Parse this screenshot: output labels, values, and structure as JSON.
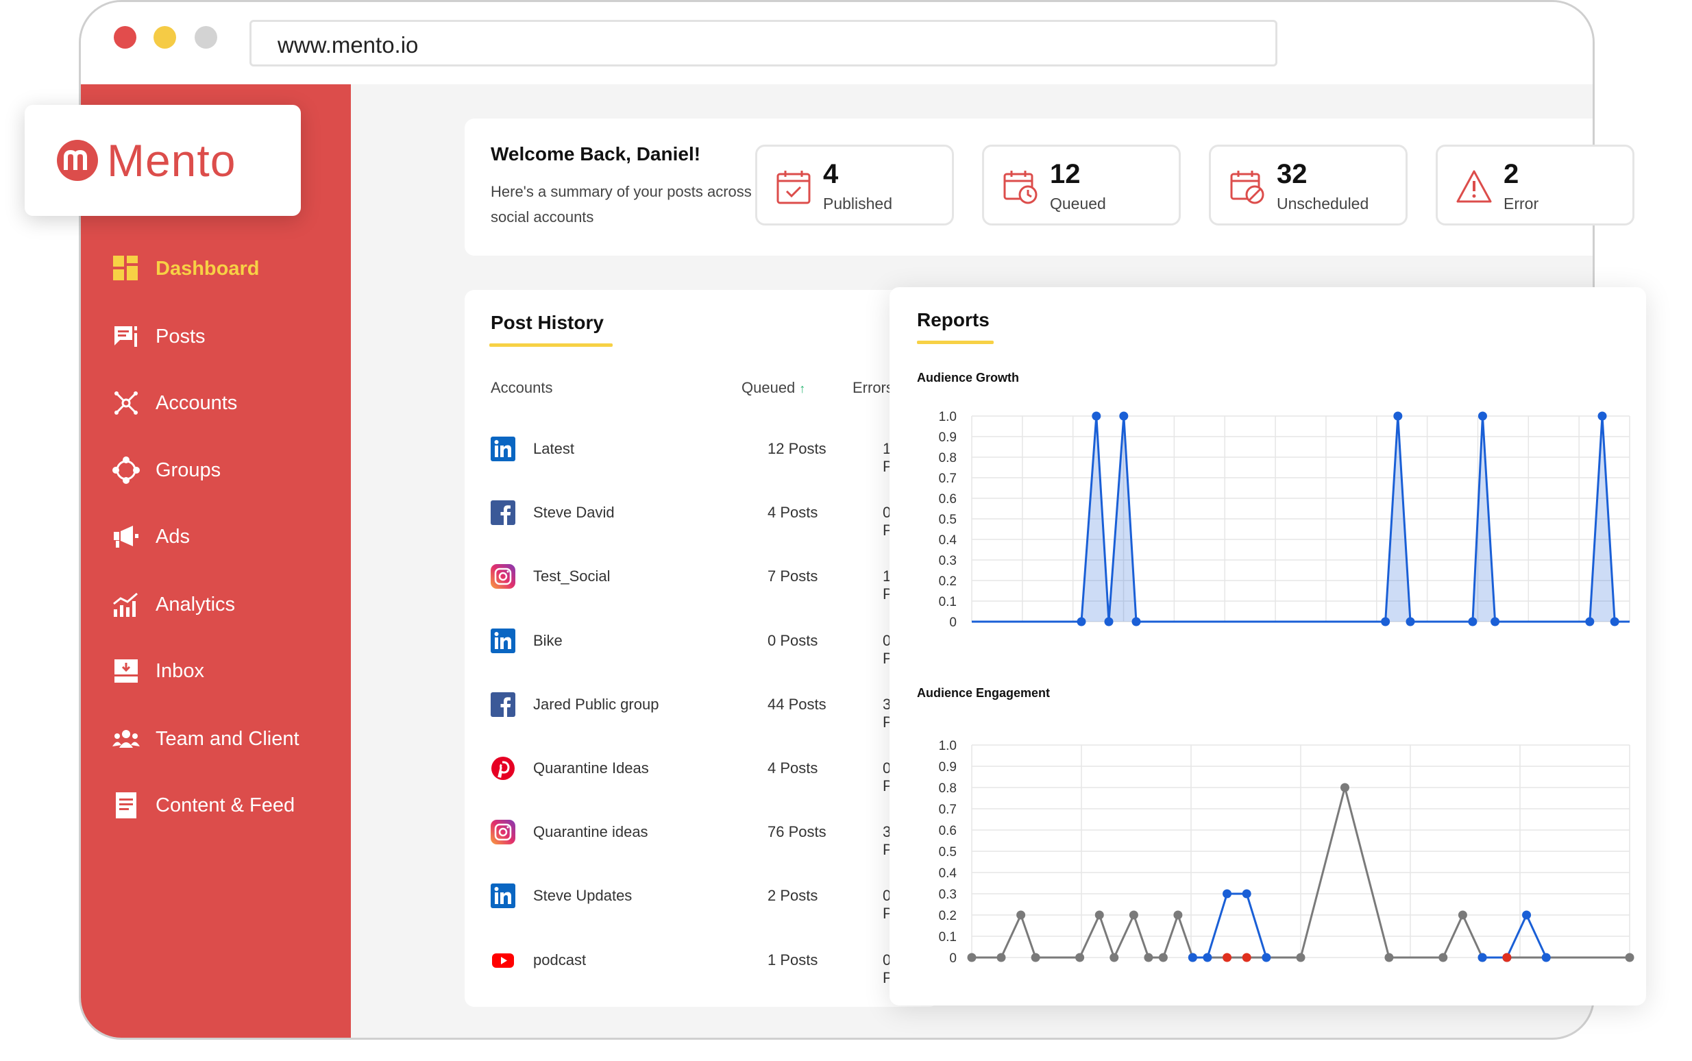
{
  "browser": {
    "url": "www.mento.io"
  },
  "brand": {
    "name": "Mento",
    "logo_letter": "m",
    "color": "#dc4d4b",
    "accent": "#f7d145"
  },
  "sidebar": {
    "items": [
      {
        "label": "Dashboard",
        "icon": "dashboard-icon"
      },
      {
        "label": "Posts",
        "icon": "posts-icon"
      },
      {
        "label": "Accounts",
        "icon": "accounts-icon"
      },
      {
        "label": "Groups",
        "icon": "groups-icon"
      },
      {
        "label": "Ads",
        "icon": "megaphone-icon"
      },
      {
        "label": "Analytics",
        "icon": "analytics-icon"
      },
      {
        "label": "Inbox",
        "icon": "inbox-icon"
      },
      {
        "label": "Team and Client",
        "icon": "team-icon"
      },
      {
        "label": "Content & Feed",
        "icon": "document-icon"
      }
    ]
  },
  "welcome": {
    "title": "Welcome Back, Daniel!",
    "subtitle": "Here's a summary of your posts across all your social accounts"
  },
  "stats": [
    {
      "value": "4",
      "label": "Published",
      "icon": "calendar-check-icon"
    },
    {
      "value": "12",
      "label": "Queued",
      "icon": "calendar-clock-icon"
    },
    {
      "value": "32",
      "label": "Unscheduled",
      "icon": "calendar-block-icon"
    },
    {
      "value": "2",
      "label": "Error",
      "icon": "warning-icon"
    }
  ],
  "history": {
    "title": "Post History",
    "columns": {
      "accounts": "Accounts",
      "queued": "Queued",
      "errors": "Errors"
    },
    "rows": [
      {
        "network": "linkedin",
        "name": "Latest",
        "queued": "12 Posts",
        "errors": "1 Posts"
      },
      {
        "network": "facebook",
        "name": "Steve David",
        "queued": "4 Posts",
        "errors": "0 Posts"
      },
      {
        "network": "instagram",
        "name": "Test_Social",
        "queued": "7 Posts",
        "errors": "1 Posts"
      },
      {
        "network": "linkedin",
        "name": "Bike",
        "queued": "0 Posts",
        "errors": "0 Posts"
      },
      {
        "network": "facebook",
        "name": "Jared Public group",
        "queued": "44 Posts",
        "errors": "3 Posts"
      },
      {
        "network": "pinterest",
        "name": "Quarantine Ideas",
        "queued": "4 Posts",
        "errors": "0 Posts"
      },
      {
        "network": "instagram",
        "name": "Quarantine ideas",
        "queued": "76 Posts",
        "errors": "3 Posts"
      },
      {
        "network": "linkedin",
        "name": "Steve Updates",
        "queued": "2 Posts",
        "errors": "0 Posts"
      },
      {
        "network": "youtube",
        "name": "podcast",
        "queued": "1 Posts",
        "errors": "0 Posts"
      }
    ]
  },
  "reports": {
    "title": "Reports"
  },
  "chart_data": [
    {
      "type": "area",
      "title": "Audience Growth",
      "ylim": [
        0,
        1.0
      ],
      "yticks": [
        "1.0",
        "0.9",
        "0.8",
        "0.7",
        "0.6",
        "0.5",
        "0.4",
        "0.3",
        "0.2",
        "0.1",
        "0"
      ],
      "x": [
        0,
        4.4,
        5.0,
        5.5,
        6.1,
        6.6,
        16.6,
        17.1,
        17.6,
        20.1,
        20.5,
        21.0,
        24.8,
        25.3,
        25.8,
        26.4
      ],
      "series": [
        {
          "color": "#1a5fd6",
          "values": [
            0,
            0,
            1,
            0,
            1,
            0,
            0,
            1,
            0,
            0,
            1,
            0,
            0,
            1,
            0,
            0
          ]
        }
      ]
    },
    {
      "type": "line",
      "title": "Audience Engagement",
      "ylim": [
        0,
        1.0
      ],
      "yticks": [
        "1.0",
        "0.9",
        "0.8",
        "0.7",
        "0.6",
        "0.5",
        "0.4",
        "0.3",
        "0.2",
        "0.1",
        "0"
      ],
      "series": [
        {
          "color": "#7a7a7a",
          "points": [
            [
              0,
              0
            ],
            [
              0.6,
              0
            ],
            [
              1.0,
              0.2
            ],
            [
              1.3,
              0
            ],
            [
              2.2,
              0
            ],
            [
              2.6,
              0.2
            ],
            [
              2.9,
              0
            ],
            [
              3.3,
              0.2
            ],
            [
              3.6,
              0
            ],
            [
              3.9,
              0
            ],
            [
              4.2,
              0.2
            ],
            [
              4.5,
              0
            ],
            [
              6.7,
              0
            ],
            [
              7.6,
              0.8
            ],
            [
              8.5,
              0
            ],
            [
              9.6,
              0
            ],
            [
              10.0,
              0.2
            ],
            [
              10.4,
              0
            ],
            [
              13.4,
              0
            ]
          ]
        },
        {
          "color": "#1a5fd6",
          "points": [
            [
              4.5,
              0
            ],
            [
              4.8,
              0
            ],
            [
              5.2,
              0.3
            ],
            [
              5.6,
              0.3
            ],
            [
              6.0,
              0
            ],
            [
              10.4,
              0
            ],
            [
              10.9,
              0
            ],
            [
              11.3,
              0.2
            ],
            [
              11.7,
              0
            ]
          ]
        },
        {
          "color": "#e0301e",
          "points": [
            [
              5.2,
              0
            ],
            [
              5.6,
              0
            ],
            [
              10.9,
              0
            ]
          ]
        }
      ]
    }
  ]
}
